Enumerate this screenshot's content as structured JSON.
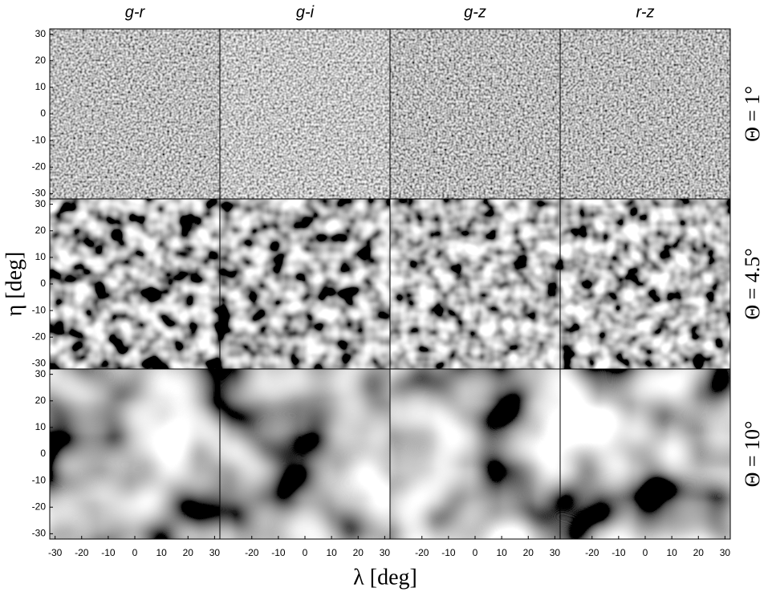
{
  "chart_data": {
    "type": "image-grid",
    "column_titles": [
      "g-r",
      "g-i",
      "g-z",
      "r-z"
    ],
    "row_labels": [
      "Θ = 1°",
      "Θ = 4.5°",
      "Θ = 10°"
    ],
    "xlabel": "λ [deg]",
    "ylabel": "η [deg]",
    "xlim": [
      -32,
      32
    ],
    "ylim": [
      -32,
      32
    ],
    "xticks": [
      -30,
      -20,
      -10,
      0,
      10,
      20,
      30
    ],
    "yticks": [
      30,
      20,
      10,
      0,
      -10,
      -20,
      -30
    ]
  }
}
